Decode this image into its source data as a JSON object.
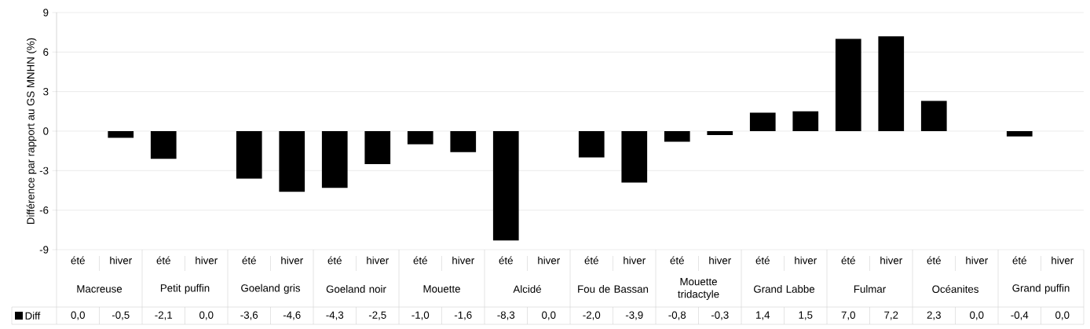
{
  "chart_data": {
    "type": "bar",
    "ylabel": "Différence par rapport au GS MNHN (%)",
    "categories": [
      "été",
      "hiver",
      "été",
      "hiver",
      "été",
      "hiver",
      "été",
      "hiver",
      "été",
      "hiver",
      "été",
      "hiver",
      "été",
      "hiver",
      "été",
      "hiver",
      "été",
      "hiver",
      "été",
      "hiver",
      "été",
      "hiver",
      "été",
      "hiver"
    ],
    "annotations": [
      "Macreuse",
      "Petit puffin",
      "Goeland gris",
      "Goeland noir",
      "Mouette",
      "Alcidé",
      "Fou de Bassan",
      "Mouette tridactyle",
      "Grand Labbe",
      "Fulmar",
      "Océanites",
      "Grand puffin"
    ],
    "series": [
      {
        "name": "Diff",
        "color": "#000000",
        "values": [
          0.0,
          -0.5,
          -2.1,
          0.0,
          -3.6,
          -4.6,
          -4.3,
          -2.5,
          -1.0,
          -1.6,
          -8.3,
          0.0,
          -2.0,
          -3.9,
          -0.8,
          -0.3,
          1.4,
          1.5,
          7.0,
          7.2,
          2.3,
          0.0,
          -0.4,
          0.0
        ],
        "value_labels": [
          "0,0",
          "-0,5",
          "-2,1",
          "0,0",
          "-3,6",
          "-4,6",
          "-4,3",
          "-2,5",
          "-1,0",
          "-1,6",
          "-8,3",
          "0,0",
          "-2,0",
          "-3,9",
          "-0,8",
          "-0,3",
          "1,4",
          "1,5",
          "7,0",
          "7,2",
          "2,3",
          "0,0",
          "-0,4",
          "0,0"
        ]
      }
    ],
    "ylim": [
      -9,
      9
    ],
    "yticks": [
      -9,
      -6,
      -3,
      0,
      3,
      6,
      9
    ],
    "grid": "y",
    "legend": "bottom left"
  }
}
